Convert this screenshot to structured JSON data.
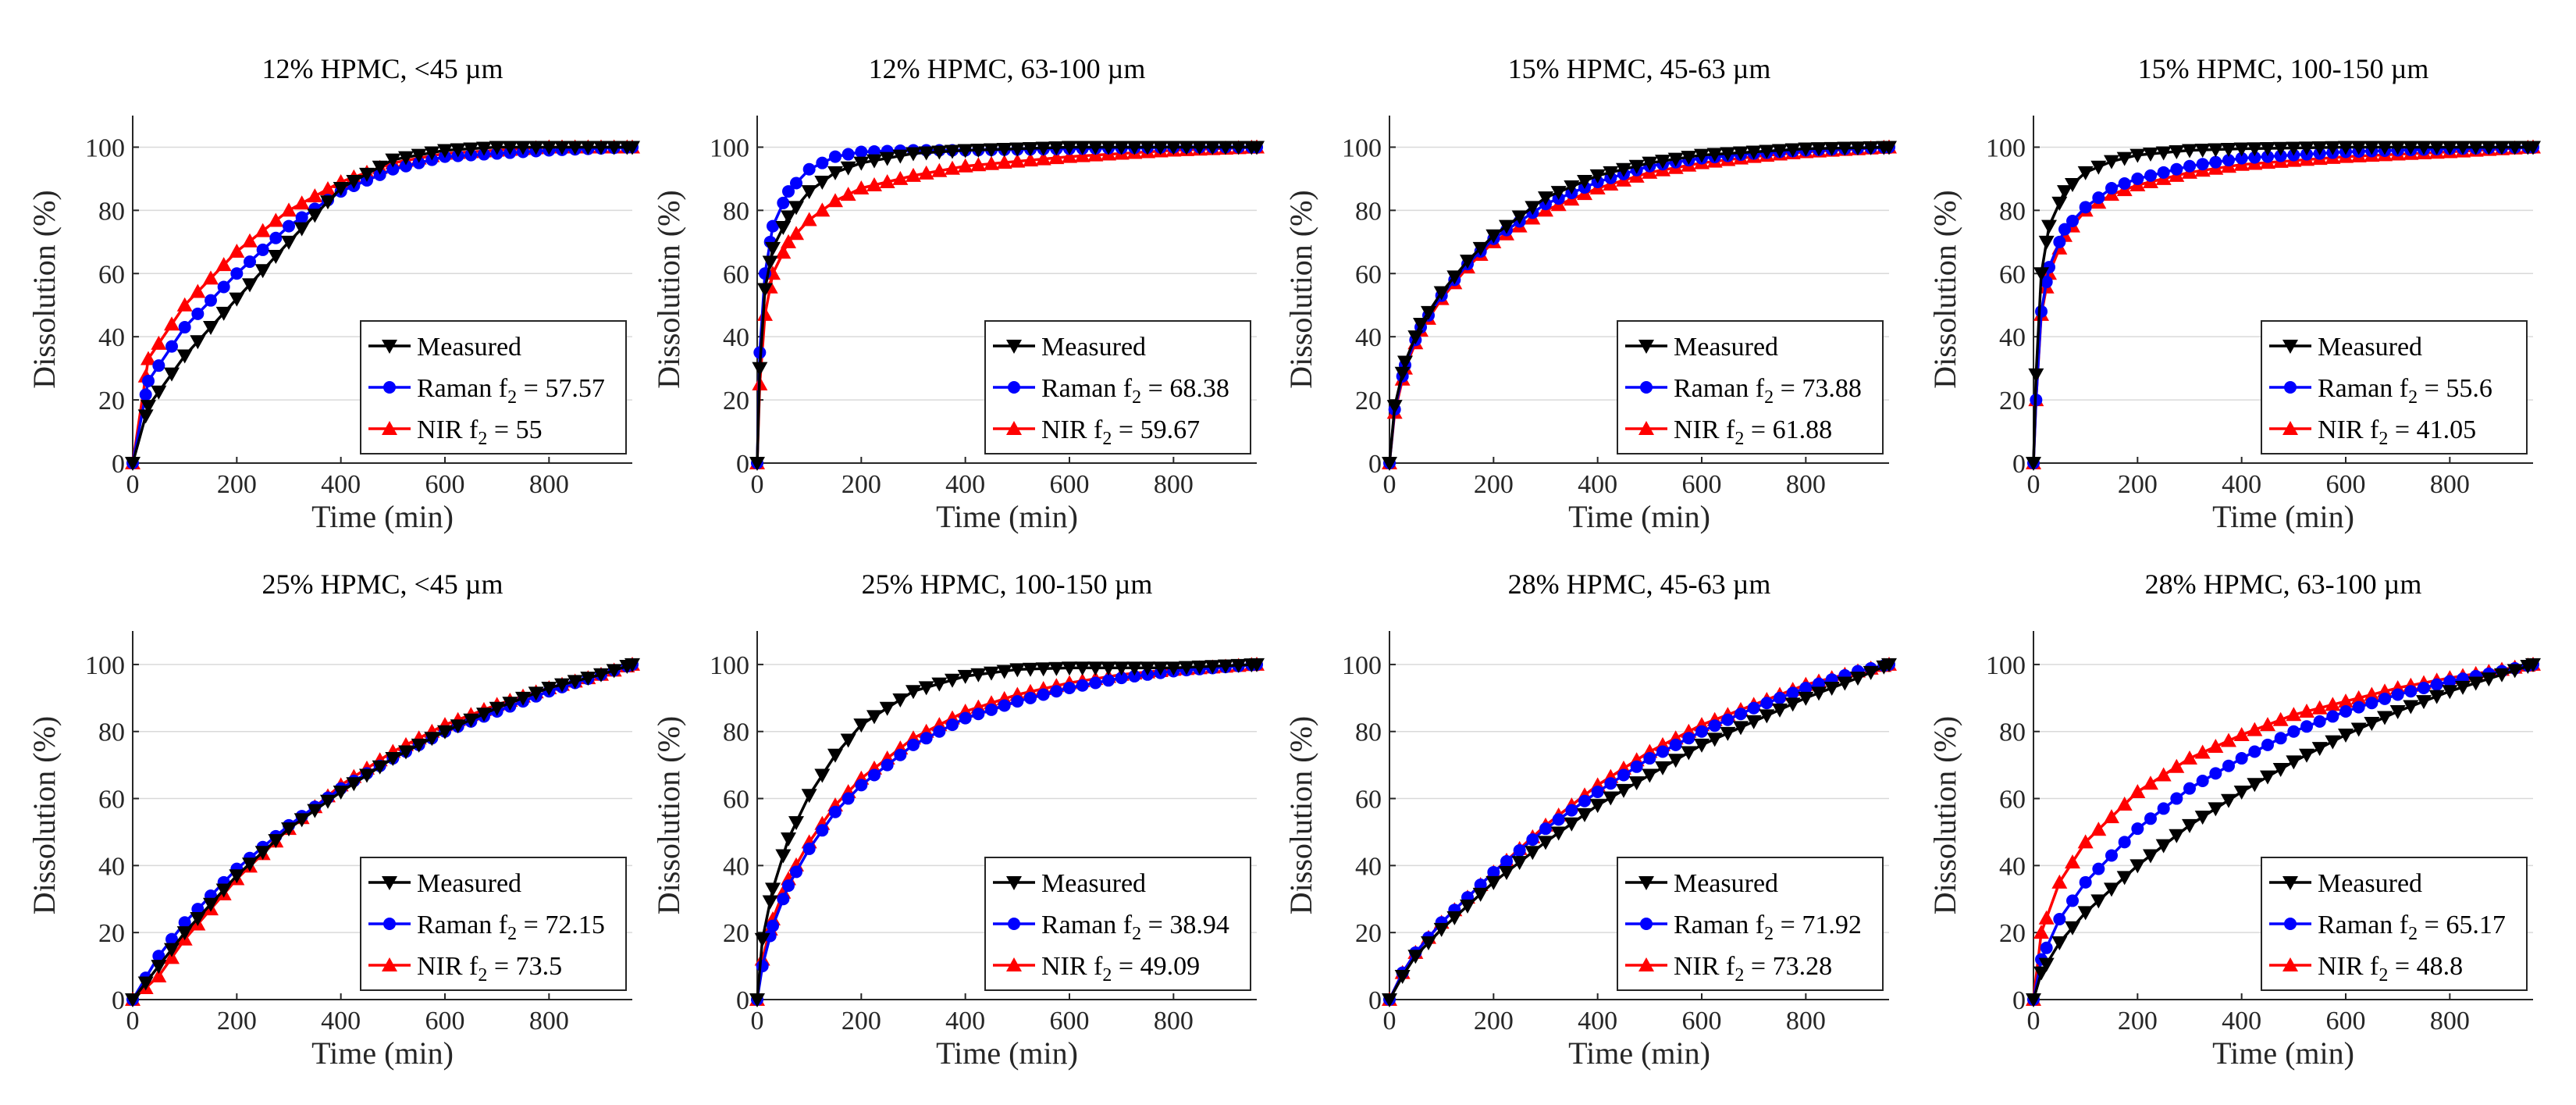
{
  "figure": {
    "xlabel": "Time (min)",
    "ylabel": "Dissolution (%)",
    "xlim": [
      0,
      960
    ],
    "ylim": [
      0,
      110
    ],
    "xticks": [
      0,
      200,
      400,
      600,
      800
    ],
    "yticks": [
      0,
      20,
      40,
      60,
      80,
      100
    ]
  },
  "series_styles": {
    "Measured": {
      "color": "#000000",
      "marker": "triangle-down"
    },
    "Raman": {
      "color": "#0000ff",
      "marker": "circle"
    },
    "NIR": {
      "color": "#ff0000",
      "marker": "triangle-up"
    }
  },
  "chart_data": [
    {
      "type": "line",
      "title": "12% HPMC, <45 µm",
      "xlabel": "Time (min)",
      "ylabel": "Dissolution (%)",
      "xlim": [
        0,
        960
      ],
      "ylim": [
        0,
        110
      ],
      "legend_position": "bottom-right",
      "x": [
        0,
        30,
        100,
        200,
        300,
        400,
        500,
        600,
        700,
        800,
        960
      ],
      "series": [
        {
          "name": "Measured",
          "legend": "Measured",
          "f2": "",
          "values": [
            0,
            18,
            34,
            52,
            70,
            87,
            96,
            99,
            100,
            100,
            100
          ]
        },
        {
          "name": "Raman",
          "legend": "Raman f",
          "f2": " = 57.57",
          "values": [
            0,
            26,
            43,
            60,
            75,
            86,
            93,
            97,
            98,
            99,
            100
          ]
        },
        {
          "name": "NIR",
          "legend": "NIR f",
          "f2": " = 55",
          "values": [
            0,
            33,
            50,
            67,
            80,
            89,
            95,
            98,
            99,
            100,
            100
          ]
        }
      ]
    },
    {
      "type": "line",
      "title": "12% HPMC, 63-100 µm",
      "xlabel": "Time (min)",
      "ylabel": "Dissolution (%)",
      "xlim": [
        0,
        960
      ],
      "ylim": [
        0,
        110
      ],
      "legend_position": "bottom-right",
      "x": [
        0,
        5,
        15,
        30,
        60,
        100,
        150,
        200,
        300,
        400,
        600,
        800,
        960
      ],
      "series": [
        {
          "name": "Measured",
          "legend": "Measured",
          "f2": "",
          "values": [
            0,
            30,
            55,
            68,
            78,
            86,
            92,
            95,
            98,
            99,
            100,
            100,
            100
          ]
        },
        {
          "name": "Raman",
          "legend": "Raman f",
          "f2": " = 68.38",
          "values": [
            0,
            35,
            60,
            75,
            86,
            93,
            97,
            98.5,
            99,
            99,
            99.5,
            100,
            100
          ]
        },
        {
          "name": "NIR",
          "legend": "NIR f",
          "f2": " = 59.67",
          "values": [
            0,
            25,
            47,
            60,
            70,
            77,
            83,
            87,
            91,
            94,
            97,
            99,
            100
          ]
        }
      ]
    },
    {
      "type": "line",
      "title": "15% HPMC, 45-63 µm",
      "xlabel": "Time (min)",
      "ylabel": "Dissolution (%)",
      "xlim": [
        0,
        960
      ],
      "ylim": [
        0,
        110
      ],
      "legend_position": "bottom-right",
      "x": [
        0,
        10,
        30,
        60,
        100,
        150,
        200,
        300,
        400,
        500,
        600,
        700,
        800,
        960
      ],
      "series": [
        {
          "name": "Measured",
          "legend": "Measured",
          "f2": "",
          "values": [
            0,
            18,
            32,
            44,
            54,
            64,
            72,
            84,
            91,
            95,
            97.5,
            98.5,
            99.5,
            100
          ]
        },
        {
          "name": "Raman",
          "legend": "Raman f",
          "f2": " = 73.88",
          "values": [
            0,
            17,
            31,
            43,
            53,
            63,
            71,
            82,
            89,
            94,
            96.5,
            98,
            99,
            100
          ]
        },
        {
          "name": "NIR",
          "legend": "NIR f",
          "f2": " = 61.88",
          "values": [
            0,
            16,
            30,
            42,
            52,
            62,
            70,
            80,
            87,
            92,
            95,
            97,
            98.5,
            100
          ]
        }
      ]
    },
    {
      "type": "line",
      "title": "15% HPMC, 100-150 µm",
      "xlabel": "Time (min)",
      "ylabel": "Dissolution (%)",
      "xlim": [
        0,
        960
      ],
      "ylim": [
        0,
        110
      ],
      "legend_position": "bottom-right",
      "x": [
        0,
        5,
        15,
        30,
        60,
        100,
        150,
        200,
        300,
        400,
        600,
        800,
        960
      ],
      "series": [
        {
          "name": "Measured",
          "legend": "Measured",
          "f2": "",
          "values": [
            0,
            28,
            60,
            75,
            86,
            92,
            95.5,
            97.5,
            99,
            99.5,
            100,
            100,
            100
          ]
        },
        {
          "name": "Raman",
          "legend": "Raman f",
          "f2": " = 55.6",
          "values": [
            0,
            20,
            48,
            62,
            74,
            81,
            87,
            90,
            94,
            96.5,
            98.5,
            99.5,
            100
          ]
        },
        {
          "name": "NIR",
          "legend": "NIR f",
          "f2": " = 41.05",
          "values": [
            0,
            20,
            47,
            60,
            72,
            80,
            85,
            88,
            92,
            94.5,
            97,
            98.5,
            100
          ]
        }
      ]
    },
    {
      "type": "line",
      "title": "25% HPMC, <45 µm",
      "xlabel": "Time (min)",
      "ylabel": "Dissolution (%)",
      "xlim": [
        0,
        960
      ],
      "ylim": [
        0,
        110
      ],
      "legend_position": "bottom-right",
      "x": [
        0,
        50,
        100,
        200,
        300,
        400,
        500,
        600,
        700,
        800,
        900,
        960
      ],
      "series": [
        {
          "name": "Measured",
          "legend": "Measured",
          "f2": "",
          "values": [
            0,
            10,
            20,
            37,
            51,
            62,
            72,
            80,
            87,
            93,
            97,
            100
          ]
        },
        {
          "name": "Raman",
          "legend": "Raman f",
          "f2": " = 72.15",
          "values": [
            0,
            13,
            23,
            39,
            52,
            63,
            72,
            80,
            86,
            92,
            97,
            100
          ]
        },
        {
          "name": "NIR",
          "legend": "NIR f",
          "f2": " = 73.5",
          "values": [
            0,
            7,
            18,
            36,
            51,
            64,
            74,
            82,
            88,
            93,
            97,
            100
          ]
        }
      ]
    },
    {
      "type": "line",
      "title": "25% HPMC, 100-150 µm",
      "xlabel": "Time (min)",
      "ylabel": "Dissolution (%)",
      "xlim": [
        0,
        960
      ],
      "ylim": [
        0,
        110
      ],
      "legend_position": "bottom-right",
      "x": [
        0,
        10,
        30,
        60,
        100,
        150,
        200,
        300,
        400,
        500,
        600,
        700,
        800,
        960
      ],
      "series": [
        {
          "name": "Measured",
          "legend": "Measured",
          "f2": "",
          "values": [
            0,
            18,
            33,
            48,
            61,
            73,
            82,
            92,
            96.5,
            98.5,
            99,
            99,
            99,
            100
          ]
        },
        {
          "name": "Raman",
          "legend": "Raman f",
          "f2": " = 38.94",
          "values": [
            0,
            10,
            22,
            34,
            45,
            56,
            64,
            76,
            84,
            89,
            93,
            96,
            98,
            100
          ]
        },
        {
          "name": "NIR",
          "legend": "NIR f",
          "f2": " = 49.09",
          "values": [
            0,
            12,
            24,
            36,
            47,
            58,
            66,
            78,
            86,
            91,
            94.5,
            97,
            98.5,
            100
          ]
        }
      ]
    },
    {
      "type": "line",
      "title": "28% HPMC, 45-63 µm",
      "xlabel": "Time (min)",
      "ylabel": "Dissolution (%)",
      "xlim": [
        0,
        960
      ],
      "ylim": [
        0,
        110
      ],
      "legend_position": "bottom-right",
      "x": [
        0,
        25,
        50,
        100,
        200,
        300,
        400,
        500,
        600,
        700,
        800,
        900,
        960
      ],
      "series": [
        {
          "name": "Measured",
          "legend": "Measured",
          "f2": "",
          "values": [
            0,
            7,
            13,
            21,
            35,
            47,
            58,
            67,
            76,
            83,
            90,
            96,
            100
          ]
        },
        {
          "name": "Raman",
          "legend": "Raman f",
          "f2": " = 71.92",
          "values": [
            0,
            8,
            14,
            23,
            38,
            51,
            62,
            72,
            80,
            87,
            93,
            98,
            100
          ]
        },
        {
          "name": "NIR",
          "legend": "NIR f",
          "f2": " = 73.28",
          "values": [
            0,
            8,
            14,
            23,
            38,
            52,
            64,
            74,
            82,
            88,
            94,
            98,
            100
          ]
        }
      ]
    },
    {
      "type": "line",
      "title": "28% HPMC, 63-100 µm",
      "xlabel": "Time (min)",
      "ylabel": "Dissolution (%)",
      "xlim": [
        0,
        960
      ],
      "ylim": [
        0,
        110
      ],
      "legend_position": "bottom-right",
      "x": [
        0,
        15,
        50,
        100,
        200,
        300,
        400,
        500,
        600,
        700,
        800,
        900,
        960
      ],
      "series": [
        {
          "name": "Measured",
          "legend": "Measured",
          "f2": "",
          "values": [
            0,
            8,
            17,
            26,
            40,
            52,
            62,
            71,
            79,
            86,
            92,
            97,
            100
          ]
        },
        {
          "name": "Raman",
          "legend": "Raman f",
          "f2": " = 65.17",
          "values": [
            0,
            12,
            24,
            35,
            51,
            63,
            72,
            80,
            86,
            91,
            95,
            98,
            100
          ]
        },
        {
          "name": "NIR",
          "legend": "NIR f",
          "f2": " = 48.8",
          "values": [
            0,
            20,
            35,
            47,
            62,
            72,
            79,
            85,
            89,
            93,
            96,
            98.5,
            100
          ]
        }
      ]
    }
  ]
}
